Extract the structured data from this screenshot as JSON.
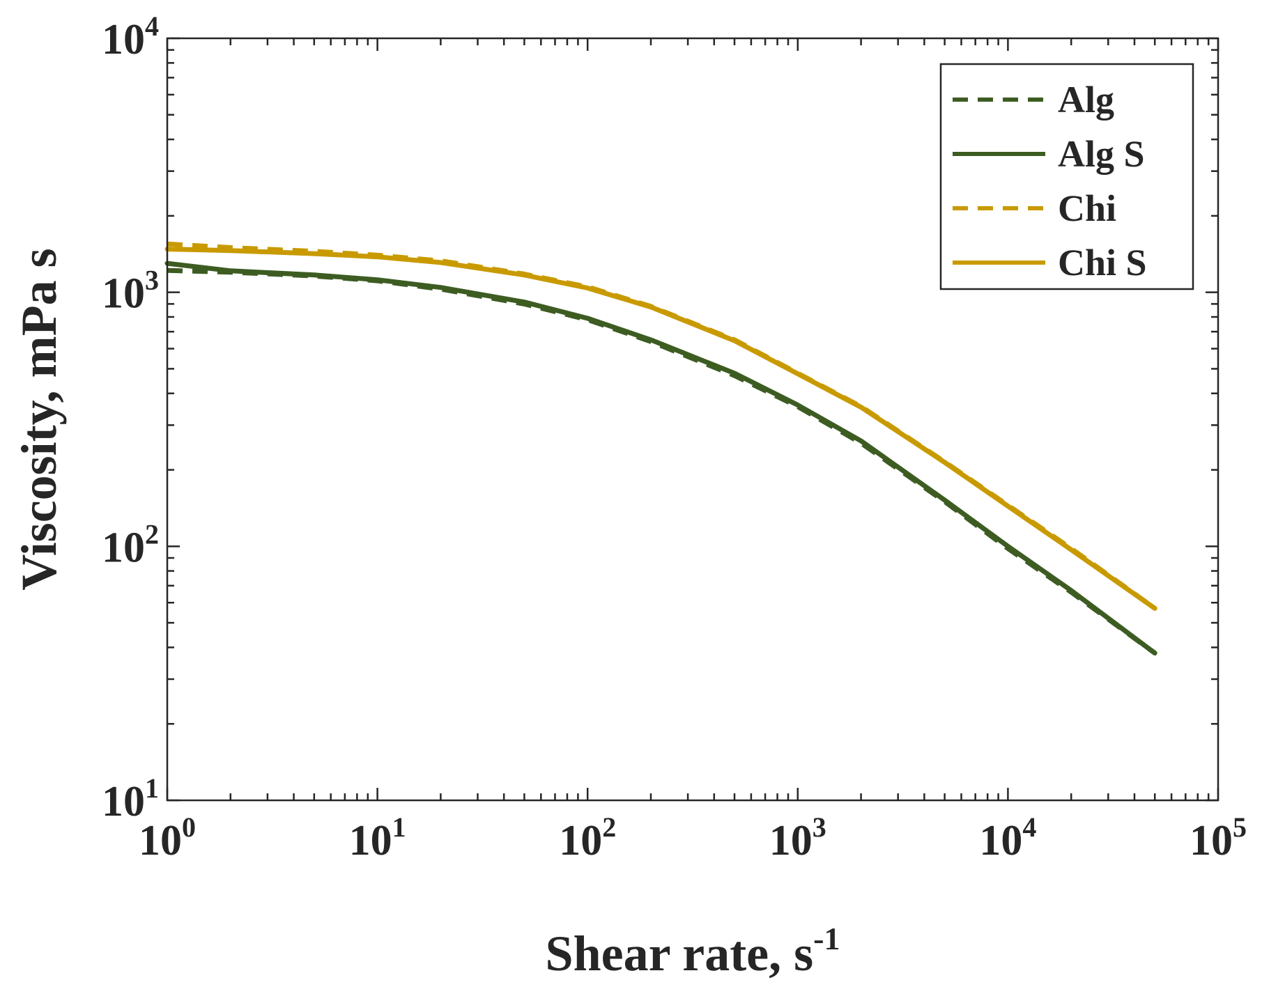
{
  "chart_data": {
    "type": "line",
    "xscale": "log",
    "yscale": "log",
    "xlim": [
      1,
      100000
    ],
    "ylim": [
      10,
      10000
    ],
    "xlabel": {
      "main": "Shear rate, s",
      "superscript": "-1"
    },
    "ylabel": "Viscosity, mPa s",
    "xticks": [
      {
        "base": "10",
        "exp": "0"
      },
      {
        "base": "10",
        "exp": "1"
      },
      {
        "base": "10",
        "exp": "2"
      },
      {
        "base": "10",
        "exp": "3"
      },
      {
        "base": "10",
        "exp": "4"
      },
      {
        "base": "10",
        "exp": "5"
      }
    ],
    "yticks": [
      {
        "base": "10",
        "exp": "1"
      },
      {
        "base": "10",
        "exp": "2"
      },
      {
        "base": "10",
        "exp": "3"
      },
      {
        "base": "10",
        "exp": "4"
      }
    ],
    "legend_position": "top-right",
    "series": [
      {
        "name": "Alg",
        "style": "dashed",
        "color": "#3d5c22",
        "x": [
          1,
          2,
          5,
          10,
          20,
          50,
          100,
          200,
          500,
          1000,
          2000,
          5000,
          10000,
          20000,
          50000
        ],
        "y": [
          1220,
          1200,
          1160,
          1110,
          1030,
          900,
          780,
          640,
          470,
          355,
          255,
          150,
          98,
          66,
          38
        ]
      },
      {
        "name": "Alg S",
        "style": "solid",
        "color": "#3d5c22",
        "x": [
          1,
          2,
          5,
          10,
          20,
          50,
          100,
          200,
          500,
          1000,
          2000,
          5000,
          10000,
          20000,
          50000
        ],
        "y": [
          1300,
          1215,
          1170,
          1120,
          1045,
          915,
          790,
          650,
          480,
          360,
          260,
          152,
          100,
          67,
          38
        ]
      },
      {
        "name": "Chi",
        "style": "dashed",
        "color": "#c99a00",
        "x": [
          1,
          2,
          5,
          10,
          20,
          50,
          100,
          200,
          500,
          1000,
          2000,
          5000,
          10000,
          20000,
          50000
        ],
        "y": [
          1550,
          1500,
          1450,
          1400,
          1330,
          1180,
          1050,
          880,
          650,
          480,
          355,
          215,
          145,
          98,
          57
        ]
      },
      {
        "name": "Chi S",
        "style": "solid",
        "color": "#c99a00",
        "x": [
          1,
          2,
          5,
          10,
          20,
          50,
          100,
          200,
          500,
          1000,
          2000,
          5000,
          10000,
          20000,
          50000
        ],
        "y": [
          1480,
          1460,
          1420,
          1380,
          1310,
          1170,
          1040,
          875,
          645,
          478,
          353,
          214,
          144,
          97,
          57
        ]
      }
    ]
  }
}
